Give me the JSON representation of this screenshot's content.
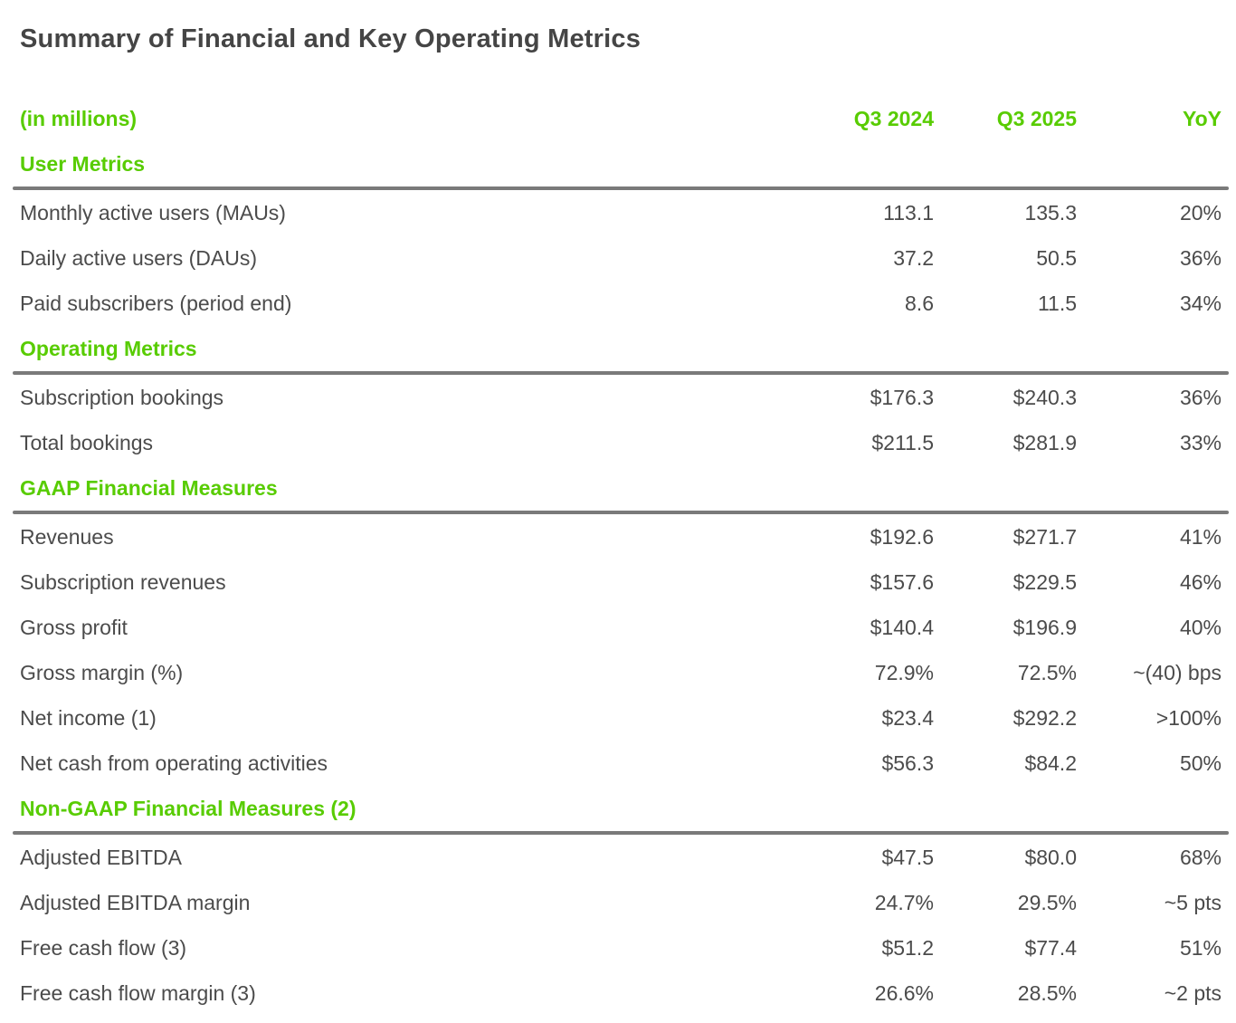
{
  "title": "Summary of Financial and Key Operating Metrics",
  "table": {
    "unit_label": "(in millions)",
    "columns": [
      "Q3 2024",
      "Q3 2025",
      "YoY"
    ],
    "sections": [
      {
        "name": "User Metrics",
        "rows": [
          {
            "label": "Monthly active users (MAUs)",
            "q3_2024": "113.1",
            "q3_2025": "135.3",
            "yoy": "20%"
          },
          {
            "label": "Daily active users (DAUs)",
            "q3_2024": "37.2",
            "q3_2025": "50.5",
            "yoy": "36%"
          },
          {
            "label": "Paid subscribers (period end)",
            "q3_2024": "8.6",
            "q3_2025": "11.5",
            "yoy": "34%"
          }
        ]
      },
      {
        "name": "Operating Metrics",
        "rows": [
          {
            "label": "Subscription bookings",
            "q3_2024": "$176.3",
            "q3_2025": "$240.3",
            "yoy": "36%"
          },
          {
            "label": "Total bookings",
            "q3_2024": "$211.5",
            "q3_2025": "$281.9",
            "yoy": "33%"
          }
        ]
      },
      {
        "name": "GAAP Financial Measures",
        "rows": [
          {
            "label": "Revenues",
            "q3_2024": "$192.6",
            "q3_2025": "$271.7",
            "yoy": "41%"
          },
          {
            "label": "Subscription revenues",
            "q3_2024": "$157.6",
            "q3_2025": "$229.5",
            "yoy": "46%"
          },
          {
            "label": "Gross profit",
            "q3_2024": "$140.4",
            "q3_2025": "$196.9",
            "yoy": "40%"
          },
          {
            "label": "Gross margin (%)",
            "q3_2024": "72.9%",
            "q3_2025": "72.5%",
            "yoy": "~(40) bps"
          },
          {
            "label": "Net income (1)",
            "q3_2024": "$23.4",
            "q3_2025": "$292.2",
            "yoy": ">100%"
          },
          {
            "label": "Net cash from operating activities",
            "q3_2024": "$56.3",
            "q3_2025": "$84.2",
            "yoy": "50%"
          }
        ]
      },
      {
        "name": "Non-GAAP Financial Measures (2)",
        "rows": [
          {
            "label": "Adjusted EBITDA",
            "q3_2024": "$47.5",
            "q3_2025": "$80.0",
            "yoy": "68%"
          },
          {
            "label": "Adjusted EBITDA margin",
            "q3_2024": "24.7%",
            "q3_2025": "29.5%",
            "yoy": "~5 pts"
          },
          {
            "label": "Free cash flow (3)",
            "q3_2024": "$51.2",
            "q3_2025": "$77.4",
            "yoy": "51%"
          },
          {
            "label": "Free cash flow margin (3)",
            "q3_2024": "26.6%",
            "q3_2025": "28.5%",
            "yoy": "~2 pts"
          }
        ]
      }
    ]
  },
  "colors": {
    "accent_green": "#58cc02",
    "text_dark": "#4b4b4b",
    "rule_gray": "#7a7a7a"
  }
}
